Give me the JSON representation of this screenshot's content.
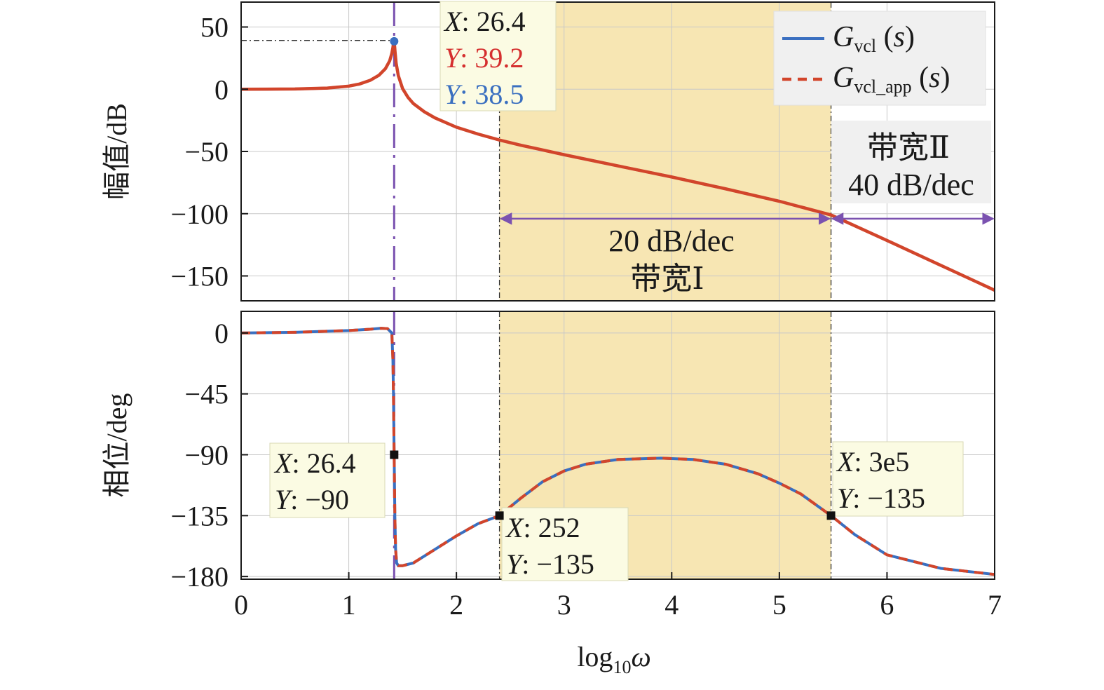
{
  "chart_data": [
    {
      "type": "line",
      "panel": "magnitude",
      "ylabel": "幅值/dB",
      "xlim": [
        0,
        7
      ],
      "ylim": [
        -170,
        70
      ],
      "yticks": [
        50,
        0,
        -50,
        -100,
        -150
      ],
      "ytick_labels": [
        "50",
        "0",
        "−50",
        "−100",
        "−150"
      ],
      "grid": true,
      "legend_position": "top-right",
      "series": [
        {
          "name": "Gvcl (s)",
          "color": "#3a6fc0",
          "style": "solid",
          "x": [
            0,
            0.5,
            0.8,
            1.0,
            1.1,
            1.2,
            1.28,
            1.34,
            1.38,
            1.4,
            1.41,
            1.415,
            1.4216,
            1.43,
            1.44,
            1.46,
            1.5,
            1.55,
            1.6,
            1.7,
            1.8,
            2.0,
            2.2,
            2.4,
            2.6,
            3.0,
            3.5,
            4.0,
            4.5,
            5.0,
            5.48,
            6.0,
            6.5,
            7.0
          ],
          "y": [
            0,
            0.2,
            0.9,
            2.5,
            4.2,
            7.2,
            11.2,
            16.5,
            22.8,
            28.8,
            33.5,
            36.5,
            38.5,
            30.0,
            21.0,
            11.0,
            0.5,
            -6.5,
            -11.5,
            -18.0,
            -23.0,
            -30.5,
            -36.0,
            -40.8,
            -45.0,
            -52.6,
            -61.6,
            -70.5,
            -80.0,
            -90.0,
            -101.0,
            -121.5,
            -141.5,
            -161.5
          ]
        },
        {
          "name": "Gvcl_app (s)",
          "color": "#d2452b",
          "style": "dashed",
          "x": [
            0,
            0.5,
            0.8,
            1.0,
            1.1,
            1.2,
            1.28,
            1.34,
            1.38,
            1.4,
            1.41,
            1.415,
            1.4216,
            1.43,
            1.44,
            1.46,
            1.5,
            1.55,
            1.6,
            1.7,
            1.8,
            2.0,
            2.2,
            2.4,
            2.6,
            3.0,
            3.5,
            4.0,
            4.5,
            5.0,
            5.48,
            6.0,
            6.5,
            7.0
          ],
          "y": [
            0,
            0.2,
            0.9,
            2.5,
            4.2,
            7.2,
            11.2,
            16.5,
            22.8,
            28.8,
            33.5,
            36.8,
            39.2,
            30.0,
            21.0,
            11.0,
            0.5,
            -6.5,
            -11.5,
            -18.0,
            -23.0,
            -30.5,
            -36.0,
            -40.8,
            -45.0,
            -52.6,
            -61.6,
            -70.5,
            -80.0,
            -90.0,
            -101.0,
            -121.5,
            -141.5,
            -161.5
          ]
        }
      ],
      "datatip": {
        "x": "26.4",
        "y_app": "39.2",
        "y_vcl": "38.5"
      },
      "annotations": {
        "bandwidth_1_slope": "20 dB/dec",
        "bandwidth_1_label": "带宽Ⅰ",
        "bandwidth_2_label": "带宽Ⅱ",
        "bandwidth_2_slope": "40 dB/dec"
      }
    },
    {
      "type": "line",
      "panel": "phase",
      "ylabel": "相位/deg",
      "xlabel": "log10ω",
      "xlim": [
        0,
        7
      ],
      "ylim": [
        -182,
        16
      ],
      "xticks": [
        0,
        1,
        2,
        3,
        4,
        5,
        6,
        7
      ],
      "yticks": [
        0,
        -45,
        -90,
        -135,
        -180
      ],
      "ytick_labels": [
        "0",
        "−45",
        "−90",
        "−135",
        "−180"
      ],
      "grid": true,
      "series": [
        {
          "name": "Gvcl (s)",
          "color": "#3a6fc0",
          "style": "solid",
          "x": [
            0,
            0.5,
            1.0,
            1.2,
            1.3,
            1.36,
            1.4,
            1.41,
            1.415,
            1.4216,
            1.428,
            1.435,
            1.445,
            1.46,
            1.5,
            1.6,
            1.8,
            2.0,
            2.2,
            2.4,
            2.6,
            2.8,
            3.0,
            3.2,
            3.5,
            3.9,
            4.2,
            4.5,
            4.8,
            5.0,
            5.2,
            5.48,
            5.7,
            6.0,
            6.5,
            7.0
          ],
          "y": [
            0,
            0.5,
            1.8,
            2.8,
            3.5,
            3.2,
            0,
            -20,
            -45,
            -90,
            -135,
            -160,
            -170,
            -172,
            -172,
            -170,
            -160,
            -150,
            -141,
            -135,
            -122,
            -110,
            -102,
            -97,
            -93.5,
            -92.5,
            -93.5,
            -97,
            -104,
            -111,
            -119,
            -135,
            -149,
            -164,
            -174,
            -178.5
          ]
        },
        {
          "name": "Gvcl_app (s)",
          "color": "#d2452b",
          "style": "dashed",
          "x": [
            0,
            0.5,
            1.0,
            1.2,
            1.3,
            1.36,
            1.4,
            1.41,
            1.415,
            1.4216,
            1.428,
            1.435,
            1.445,
            1.46,
            1.5,
            1.6,
            1.8,
            2.0,
            2.2,
            2.4,
            2.6,
            2.8,
            3.0,
            3.2,
            3.5,
            3.9,
            4.2,
            4.5,
            4.8,
            5.0,
            5.2,
            5.48,
            5.7,
            6.0,
            6.5,
            7.0
          ],
          "y": [
            0,
            0.5,
            1.8,
            2.8,
            3.5,
            3.2,
            0,
            -20,
            -45,
            -90,
            -135,
            -160,
            -170,
            -172,
            -172,
            -170,
            -160,
            -150,
            -141,
            -135,
            -122,
            -110,
            -102,
            -97,
            -93.5,
            -92.5,
            -93.5,
            -97,
            -104,
            -111,
            -119,
            -135,
            -149,
            -164,
            -174,
            -178.5
          ]
        }
      ],
      "datatips": [
        {
          "x": "26.4",
          "y": "−90",
          "px": 1.4216,
          "py": -90
        },
        {
          "x": "252",
          "y": "−135",
          "px": 2.4,
          "py": -135
        },
        {
          "x": "3e5",
          "y": "−135",
          "px": 5.48,
          "py": -135
        }
      ]
    }
  ],
  "shared": {
    "resonance_x": 1.4216,
    "band1_start": 2.4,
    "band_split": 5.48,
    "band2_end": 7.0,
    "band_color": "#f6e2a6",
    "marker_line_color": "#7b52b0"
  }
}
